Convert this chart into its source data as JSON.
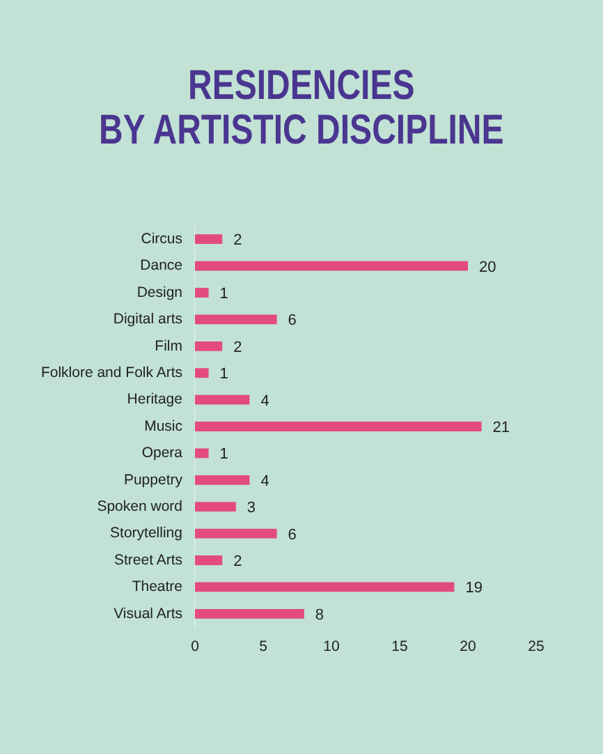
{
  "chart_data": {
    "type": "bar",
    "orientation": "horizontal",
    "title": "RESIDENCIES\nBY ARTISTIC DISCIPLINE",
    "categories": [
      "Circus",
      "Dance",
      "Design",
      "Digital arts",
      "Film",
      "Folklore and Folk Arts",
      "Heritage",
      "Music",
      "Opera",
      "Puppetry",
      "Spoken word",
      "Storytelling",
      "Street Arts",
      "Theatre",
      "Visual Arts"
    ],
    "values": [
      2,
      20,
      1,
      6,
      2,
      1,
      4,
      21,
      1,
      4,
      3,
      6,
      2,
      19,
      8
    ],
    "color": "#e34b80",
    "xlim": [
      0,
      25
    ],
    "xticks": [
      0,
      5,
      10,
      15,
      20,
      25
    ],
    "grid": false,
    "legend": false,
    "data_labels": true
  }
}
